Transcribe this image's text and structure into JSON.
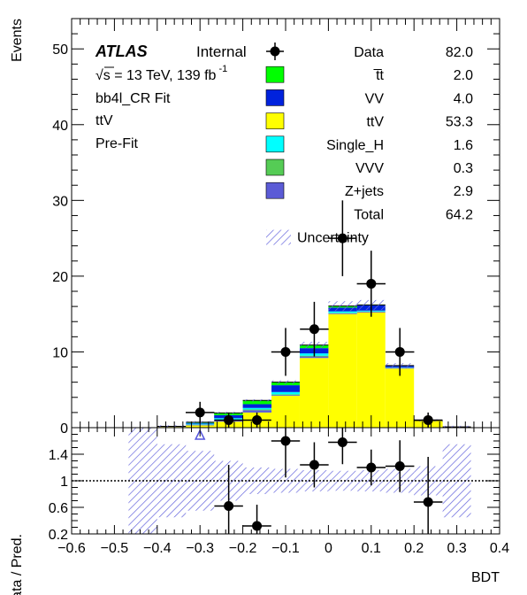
{
  "chart_data": {
    "type": "bar",
    "stacked": true,
    "xlabel": "BDT",
    "ylabel": "Events",
    "ratio_ylabel": "Data / Pred.",
    "xlim": [
      -0.6,
      0.4
    ],
    "ylim": [
      0,
      54
    ],
    "ratio_ylim": [
      0.2,
      1.8
    ],
    "x_ticks": [
      "−0.6",
      "−0.5",
      "−0.4",
      "−0.3",
      "−0.2",
      "−0.1",
      "0",
      "0.1",
      "0.2",
      "0.3",
      "0.4"
    ],
    "y_ticks": [
      "0",
      "10",
      "20",
      "30",
      "40",
      "50"
    ],
    "ratio_y_ticks": [
      "0.2",
      "0.6",
      "1",
      "1.4"
    ],
    "bin_edges": [
      -0.6,
      -0.533,
      -0.467,
      -0.4,
      -0.333,
      -0.267,
      -0.2,
      -0.133,
      -0.067,
      0.0,
      0.067,
      0.133,
      0.2,
      0.267,
      0.333,
      0.4
    ],
    "series": [
      {
        "name": "ttV",
        "color": "#ffff00",
        "values": [
          0,
          0,
          0,
          0.1,
          0.3,
          0.8,
          2.0,
          4.2,
          9.2,
          15.0,
          15.2,
          7.8,
          0.9,
          0.1,
          0
        ]
      },
      {
        "name": "Z+jets",
        "color": "#5b5bd6",
        "values": [
          0,
          0,
          0,
          0.05,
          0.1,
          0.2,
          0.3,
          0.1,
          0.2,
          0.1,
          0.1,
          0.1,
          0,
          0,
          0
        ]
      },
      {
        "name": "VVV",
        "color": "#55cc55",
        "values": [
          0,
          0,
          0,
          0,
          0.02,
          0.05,
          0.1,
          0.1,
          0.1,
          0.05,
          0.05,
          0.02,
          0,
          0,
          0
        ]
      },
      {
        "name": "Single_H",
        "color": "#00ffff",
        "values": [
          0,
          0,
          0,
          0.02,
          0.1,
          0.2,
          0.2,
          0.3,
          0.3,
          0.2,
          0.1,
          0.05,
          0,
          0,
          0
        ]
      },
      {
        "name": "VV",
        "color": "#0022dd",
        "values": [
          0,
          0,
          0,
          0,
          0.1,
          0.4,
          0.5,
          0.9,
          0.7,
          0.5,
          0.7,
          0.2,
          0.05,
          0,
          0
        ]
      },
      {
        "name": "t̅t",
        "color": "#00ff00",
        "values": [
          0,
          0,
          0,
          0,
          0.1,
          0.3,
          0.5,
          0.4,
          0.4,
          0.2,
          0.05,
          0.02,
          0,
          0,
          0
        ]
      }
    ],
    "data_points": {
      "name": "Data",
      "x": [
        -0.3,
        -0.233,
        -0.167,
        -0.1,
        -0.033,
        0.033,
        0.1,
        0.167,
        0.233
      ],
      "y": [
        2,
        1,
        1,
        10,
        13,
        25,
        19,
        10,
        1
      ],
      "yerr": [
        1.41,
        1.0,
        1.0,
        3.16,
        3.61,
        5.0,
        4.36,
        3.16,
        1.0
      ]
    },
    "ratio": {
      "x": [
        -0.233,
        -0.167,
        -0.1,
        -0.033,
        0.033,
        0.1,
        0.167,
        0.233
      ],
      "y": [
        0.62,
        0.32,
        1.6,
        1.24,
        1.58,
        1.2,
        1.22,
        0.68
      ],
      "yerr": [
        0.62,
        0.32,
        0.55,
        0.34,
        0.33,
        0.27,
        0.39,
        0.68
      ],
      "out_of_range_marker_x": -0.3,
      "reference_line": 1.0,
      "uncertainty_bands": [
        {
          "x0": -0.467,
          "x1": -0.4,
          "lo": 0.2,
          "hi": 1.8
        },
        {
          "x0": -0.4,
          "x1": -0.333,
          "lo": 0.45,
          "hi": 1.55
        },
        {
          "x0": -0.333,
          "x1": -0.267,
          "lo": 0.55,
          "hi": 1.45
        },
        {
          "x0": -0.267,
          "x1": -0.2,
          "lo": 0.7,
          "hi": 1.3
        },
        {
          "x0": -0.2,
          "x1": -0.133,
          "lo": 0.8,
          "hi": 1.2
        },
        {
          "x0": -0.133,
          "x1": -0.067,
          "lo": 0.82,
          "hi": 1.18
        },
        {
          "x0": -0.067,
          "x1": 0.0,
          "lo": 0.84,
          "hi": 1.16
        },
        {
          "x0": 0.0,
          "x1": 0.067,
          "lo": 0.85,
          "hi": 1.15
        },
        {
          "x0": 0.067,
          "x1": 0.133,
          "lo": 0.84,
          "hi": 1.16
        },
        {
          "x0": 0.133,
          "x1": 0.2,
          "lo": 0.82,
          "hi": 1.18
        },
        {
          "x0": 0.2,
          "x1": 0.267,
          "lo": 0.78,
          "hi": 1.22
        },
        {
          "x0": 0.267,
          "x1": 0.333,
          "lo": 0.45,
          "hi": 1.55
        }
      ]
    },
    "mc_uncertainty": {
      "name": "Uncertainty"
    },
    "legend": {
      "placement": "top-right",
      "entries": [
        {
          "label": "Data",
          "value": "82.0",
          "marker": "point"
        },
        {
          "label": "t̅t",
          "value": "2.0",
          "color": "#00ff00"
        },
        {
          "label": "VV",
          "value": "4.0",
          "color": "#0022dd"
        },
        {
          "label": "ttV",
          "value": "53.3",
          "color": "#ffff00"
        },
        {
          "label": "Single_H",
          "value": "1.6",
          "color": "#00ffff"
        },
        {
          "label": "VVV",
          "value": "0.3",
          "color": "#55cc55"
        },
        {
          "label": "Z+jets",
          "value": "2.9",
          "color": "#5b5bd6"
        },
        {
          "label": "Total",
          "value": "64.2"
        },
        {
          "label": "Uncertainty",
          "marker": "hatch"
        }
      ]
    },
    "annotations": {
      "atlas": "ATLAS",
      "internal": "Internal",
      "energy_prefix": "√s = 13 TeV, 139 fb",
      "energy_exponent": "-1",
      "lines": [
        "bb4l_CR Fit",
        "ttV",
        "Pre-Fit"
      ]
    },
    "colors": {
      "hatch": "#6666dd",
      "marker": "#000000"
    }
  }
}
